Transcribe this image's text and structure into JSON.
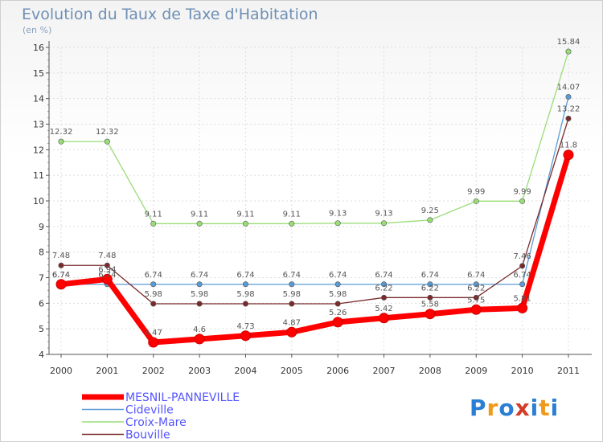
{
  "chart_data": {
    "type": "line",
    "title": "Evolution du Taux de Taxe d'Habitation",
    "unit_label": "(en %)",
    "x": [
      "2000",
      "2001",
      "2002",
      "2003",
      "2004",
      "2005",
      "2006",
      "2007",
      "2008",
      "2009",
      "2010",
      "2011"
    ],
    "ylim": [
      4,
      16
    ],
    "yticks": [
      "4",
      "5",
      "6",
      "7",
      "8",
      "9",
      "10",
      "11",
      "12",
      "13",
      "14",
      "15",
      "16"
    ],
    "grid": true,
    "legend_position": "bottom-left",
    "series": [
      {
        "name": "MESNIL-PANNEVILLE",
        "color": "#ff0000",
        "legend_color": "#5555ff",
        "values": [
          6.74,
          6.94,
          4.47,
          4.6,
          4.73,
          4.87,
          5.26,
          5.42,
          5.58,
          5.75,
          5.81,
          11.8
        ],
        "labels": [
          "6.74",
          "6.94",
          "4.47",
          "4.6",
          "4.73",
          "4.87",
          "5.26",
          "5.42",
          "5.58",
          "5.75",
          "5.81",
          "11.8"
        ]
      },
      {
        "name": "Cideville",
        "color": "#5b9bd5",
        "legend_color": "#5555ff",
        "values": [
          6.74,
          6.74,
          6.74,
          6.74,
          6.74,
          6.74,
          6.74,
          6.74,
          6.74,
          6.74,
          6.74,
          14.07
        ],
        "labels": [
          "6.74",
          "6.74",
          "6.74",
          "6.74",
          "6.74",
          "6.74",
          "6.74",
          "6.74",
          "6.74",
          "6.74",
          "6.74",
          "14.07"
        ]
      },
      {
        "name": "Croix-Mare",
        "color": "#99dd77",
        "legend_color": "#5555ff",
        "values": [
          12.32,
          12.32,
          9.11,
          9.11,
          9.11,
          9.11,
          9.13,
          9.13,
          9.25,
          9.99,
          9.99,
          15.84
        ],
        "labels": [
          "12.32",
          "12.32",
          "9.11",
          "9.11",
          "9.11",
          "9.11",
          "9.13",
          "9.13",
          "9.25",
          "9.99",
          "9.99",
          "15.84"
        ]
      },
      {
        "name": "Bouville",
        "color": "#7a2a2a",
        "legend_color": "#5555ff",
        "values": [
          7.48,
          7.48,
          5.98,
          5.98,
          5.98,
          5.98,
          5.98,
          6.22,
          6.22,
          6.22,
          7.46,
          13.22
        ],
        "labels": [
          "7.48",
          "7.48",
          "5.98",
          "5.98",
          "5.98",
          "5.98",
          "5.98",
          "6.22",
          "6.22",
          "6.22",
          "7.46",
          "13.22"
        ]
      }
    ]
  },
  "logo": {
    "letters": [
      "P",
      "r",
      "o",
      "x",
      "i",
      "t",
      "i"
    ],
    "colors": [
      "#2a7fd4",
      "#f09a1c",
      "#2a7fd4",
      "#d43c2a",
      "#2a7fd4",
      "#f09a1c",
      "#2a7fd4"
    ]
  }
}
